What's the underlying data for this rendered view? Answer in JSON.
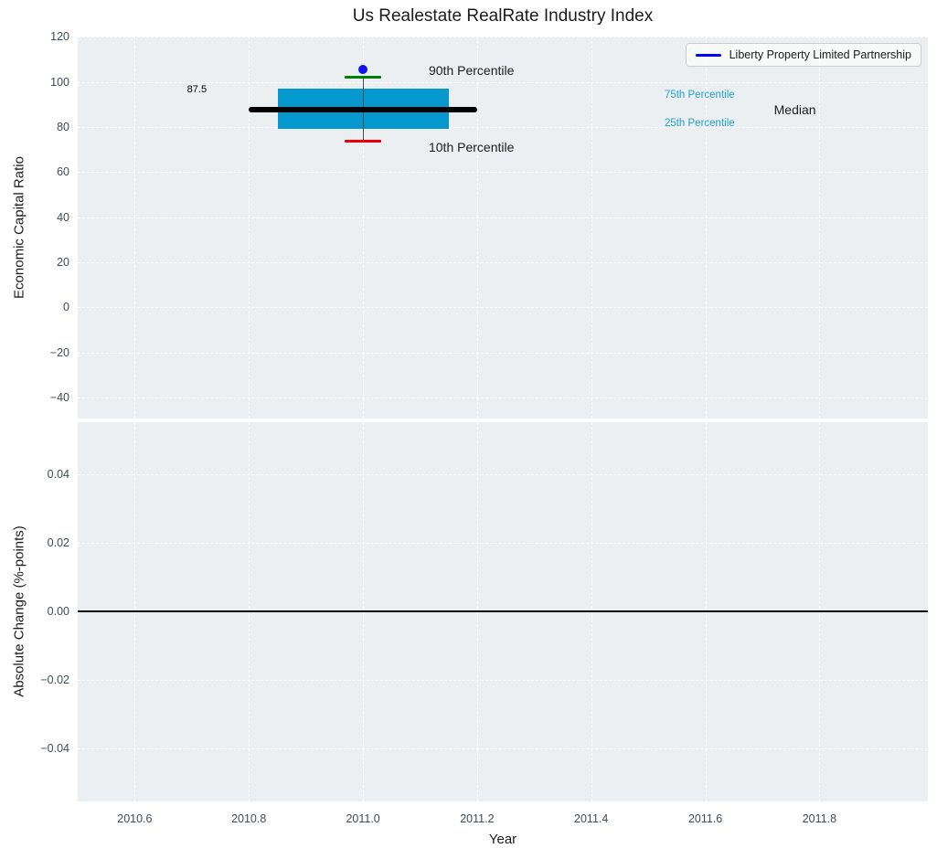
{
  "figure": {
    "title": "Us Realestate RealRate Industry Index",
    "background_color": "#ffffff",
    "axes_background_color": "#eceff1",
    "grid_color": "#ffffff",
    "tick_label_color": "#3e4c59",
    "text_color": "#1c1c1c"
  },
  "legend": {
    "label": "Liberty Property Limited Partnership",
    "line_color": "#0000ee"
  },
  "chart_data": [
    {
      "type": "boxplot",
      "title": "Us Realestate RealRate Industry Index",
      "xlabel": "",
      "ylabel": "Economic Capital Ratio",
      "xlim": [
        2010.5,
        2011.99
      ],
      "ylim": [
        -49.4,
        120.1
      ],
      "grid": "on",
      "legend_position": "upper right",
      "xticks": [
        {
          "value": 2010.6,
          "label": "2010.6"
        },
        {
          "value": 2010.8,
          "label": "2010.8"
        },
        {
          "value": 2011.0,
          "label": "2011.0"
        },
        {
          "value": 2011.2,
          "label": "2011.2"
        },
        {
          "value": 2011.4,
          "label": "2011.4"
        },
        {
          "value": 2011.6,
          "label": "2011.6"
        },
        {
          "value": 2011.8,
          "label": "2011.8"
        }
      ],
      "show_x_labels": false,
      "yticks": [
        {
          "value": 120,
          "label": "120"
        },
        {
          "value": 100,
          "label": "100"
        },
        {
          "value": 80,
          "label": "80"
        },
        {
          "value": 60,
          "label": "60"
        },
        {
          "value": 40,
          "label": "40"
        },
        {
          "value": 20,
          "label": "20"
        },
        {
          "value": 0,
          "label": "0"
        },
        {
          "value": -20,
          "label": "−20"
        },
        {
          "value": -40,
          "label": "−40"
        }
      ],
      "box": {
        "x_center": 2011.0,
        "box_x": [
          2010.85,
          2011.15
        ],
        "q1": 79.2,
        "q3": 97.0,
        "median": 87.5,
        "median_x": [
          2010.8,
          2011.2
        ],
        "p90": 102.0,
        "p10": 73.7,
        "cap_halfwidth": 0.032,
        "company_value": 105.7,
        "box_color": "#0699cf",
        "median_color": "#000000",
        "whisker_color": "#4d4d4d",
        "p90_cap_color": "#008000",
        "p10_cap_color": "#e8000b",
        "dot_color": "#1414ee"
      },
      "annotations": [
        {
          "text": "87.5",
          "x": 2010.709,
          "y": 96.5,
          "color": "#000000",
          "size": 11
        },
        {
          "text": "90th Percentile",
          "x": 2011.19,
          "y": 105.3,
          "color": "#1c1c1c",
          "size": 14
        },
        {
          "text": "10th Percentile",
          "x": 2011.19,
          "y": 71.0,
          "color": "#1c1c1c",
          "size": 14
        },
        {
          "text": "75th Percentile",
          "x": 2011.59,
          "y": 94.1,
          "color": "#21a1d6",
          "size": 11.5
        },
        {
          "text": "25th Percentile",
          "x": 2011.59,
          "y": 81.6,
          "color": "#21a1d6",
          "size": 11.5
        },
        {
          "text": "Median",
          "x": 2011.757,
          "y": 87.8,
          "color": "#1c1c1c",
          "size": 14
        }
      ]
    },
    {
      "type": "line",
      "title": "",
      "xlabel": "Year",
      "ylabel": "Absolute Change (%-points)",
      "xlim": [
        2010.5,
        2011.99
      ],
      "ylim": [
        -0.0556,
        0.0551
      ],
      "grid": "on",
      "xticks": [
        {
          "value": 2010.6,
          "label": "2010.6"
        },
        {
          "value": 2010.8,
          "label": "2010.8"
        },
        {
          "value": 2011.0,
          "label": "2011.0"
        },
        {
          "value": 2011.2,
          "label": "2011.2"
        },
        {
          "value": 2011.4,
          "label": "2011.4"
        },
        {
          "value": 2011.6,
          "label": "2011.6"
        },
        {
          "value": 2011.8,
          "label": "2011.8"
        }
      ],
      "show_x_labels": true,
      "yticks": [
        {
          "value": 0.04,
          "label": "0.04"
        },
        {
          "value": 0.02,
          "label": "0.02"
        },
        {
          "value": 0.0,
          "label": "0.00"
        },
        {
          "value": -0.02,
          "label": "−0.02"
        },
        {
          "value": -0.04,
          "label": "−0.04"
        }
      ],
      "zero_line": {
        "y": 0.0,
        "color": "#000000"
      },
      "series": [],
      "annotations": []
    }
  ]
}
